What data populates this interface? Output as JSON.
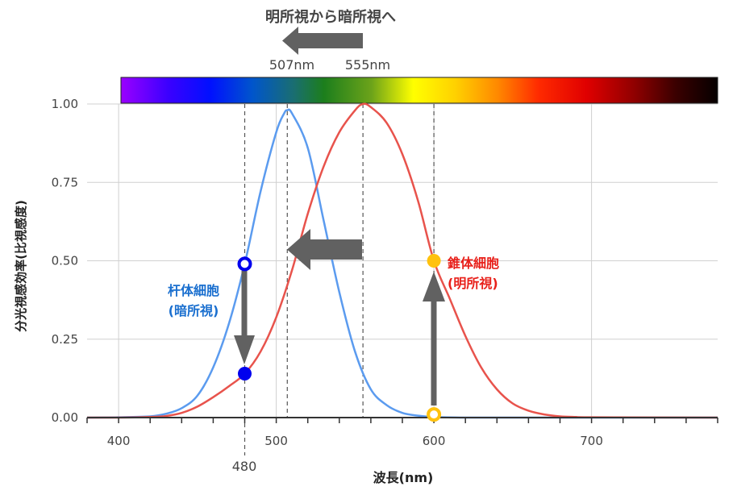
{
  "chart_data": {
    "type": "line",
    "title": "明所視から暗所視へ",
    "xlabel": "波長(nm)",
    "ylabel": "分光視感効率(比視感度)",
    "xlim": [
      380,
      780
    ],
    "ylim": [
      0,
      1
    ],
    "x_ticks": [
      400,
      500,
      600,
      700
    ],
    "y_ticks": [
      "0.00",
      "0.25",
      "0.50",
      "0.75",
      "1.00"
    ],
    "grid": true,
    "peak_labels": [
      "507nm",
      "555nm"
    ],
    "marker_label": "480",
    "series": [
      {
        "name": "杆体細胞 (暗所視)",
        "color": "#5b9bef",
        "x": [
          380,
          400,
          420,
          430,
          440,
          450,
          460,
          470,
          480,
          490,
          500,
          505,
          507,
          510,
          520,
          530,
          540,
          550,
          560,
          570,
          580,
          590,
          600,
          620,
          640,
          700,
          780
        ],
        "values": [
          0.0,
          0.001,
          0.004,
          0.012,
          0.03,
          0.07,
          0.16,
          0.3,
          0.49,
          0.72,
          0.91,
          0.97,
          0.98,
          0.97,
          0.86,
          0.63,
          0.4,
          0.21,
          0.09,
          0.04,
          0.015,
          0.006,
          0.002,
          0.0,
          0.0,
          0.0,
          0.0
        ]
      },
      {
        "name": "錐体細胞 (明所視)",
        "color": "#e8534c",
        "x": [
          380,
          400,
          420,
          430,
          440,
          450,
          460,
          470,
          480,
          490,
          500,
          510,
          520,
          530,
          540,
          550,
          555,
          560,
          570,
          580,
          590,
          600,
          610,
          620,
          630,
          640,
          650,
          660,
          670,
          680,
          690,
          700,
          780
        ],
        "values": [
          0.0,
          0.0,
          0.002,
          0.005,
          0.015,
          0.035,
          0.065,
          0.1,
          0.14,
          0.21,
          0.32,
          0.47,
          0.65,
          0.8,
          0.91,
          0.98,
          1.0,
          0.99,
          0.94,
          0.84,
          0.69,
          0.5,
          0.38,
          0.26,
          0.16,
          0.09,
          0.045,
          0.022,
          0.01,
          0.004,
          0.002,
          0.001,
          0.0
        ]
      }
    ],
    "annotations": [
      {
        "label": "杆体細胞",
        "sub": "(暗所視)",
        "color": "#1a6fcf"
      },
      {
        "label": "錐体細胞",
        "sub": "(明所視)",
        "color": "#e8201a"
      }
    ],
    "points": [
      {
        "x": 480,
        "y": 0.49,
        "color": "#0000ee",
        "hollow": true
      },
      {
        "x": 480,
        "y": 0.14,
        "color": "#0000ee",
        "hollow": false
      },
      {
        "x": 600,
        "y": 0.5,
        "color": "#ffc20e",
        "hollow": false
      },
      {
        "x": 600,
        "y": 0.01,
        "color": "#ffc20e",
        "hollow": true
      }
    ]
  }
}
